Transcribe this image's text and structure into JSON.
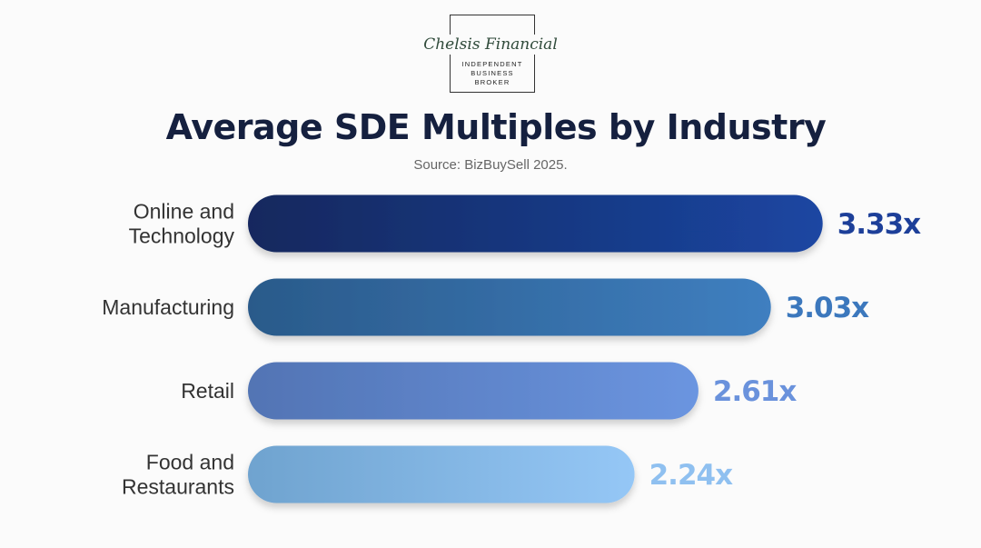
{
  "logo": {
    "name": "Chelsis Financial",
    "tagline": [
      "INDEPENDENT",
      "BUSINESS",
      "BROKER"
    ]
  },
  "chart_data": {
    "type": "bar",
    "orientation": "horizontal",
    "title": "Average SDE Multiples by Industry",
    "subtitle": "Source: BizBuySell 2025.",
    "categories": [
      [
        "Online and",
        "Technology"
      ],
      [
        "Manufacturing"
      ],
      [
        "Retail"
      ],
      [
        "Food and",
        "Restaurants"
      ]
    ],
    "values": [
      3.33,
      3.03,
      2.61,
      2.24
    ],
    "data_labels": [
      "3.33x",
      "3.03x",
      "2.61x",
      "2.24x"
    ],
    "xlim": [
      0,
      3.33
    ],
    "grid": false,
    "colors": [
      {
        "from": "#13285e",
        "to": "#1b46a2",
        "label": "#1d3f99"
      },
      {
        "from": "#2a5a8a",
        "to": "#3f7fc0",
        "label": "#3c78bd"
      },
      {
        "from": "#5274b4",
        "to": "#6b95e0",
        "label": "#6a92dc"
      },
      {
        "from": "#6fa3cf",
        "to": "#95c7f6",
        "label": "#8fc0f0"
      }
    ]
  }
}
